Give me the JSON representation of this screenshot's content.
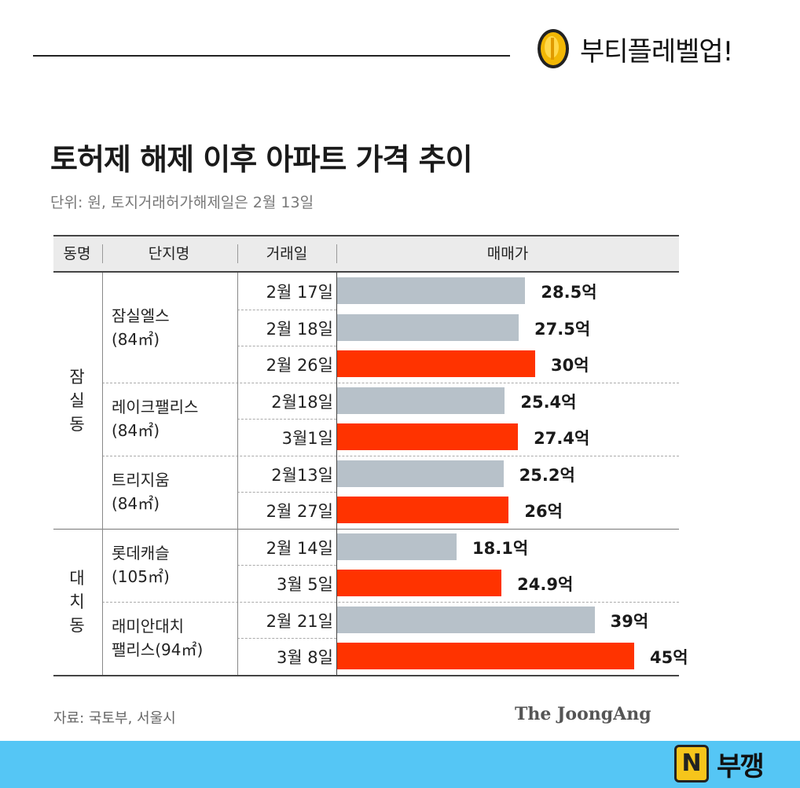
{
  "brand": {
    "name": "부티플레벨업!",
    "icon": "gold-coin-icon"
  },
  "chart_data": {
    "type": "table",
    "title": "토허제 해제 이후 아파트 가격 추이",
    "subtitle": "단위: 원, 토지거래허가해제일은 2월 13일",
    "columns": [
      "동명",
      "단지명",
      "거래일",
      "매매가"
    ],
    "dongs": [
      {
        "name": "잠실동",
        "label_chars": [
          "잠",
          "실",
          "동"
        ]
      },
      {
        "name": "대치동",
        "label_chars": [
          "대",
          "치",
          "동"
        ]
      }
    ],
    "complexes": [
      {
        "dong": "잠실동",
        "lines": [
          "잠실엘스",
          "(84㎡)"
        ]
      },
      {
        "dong": "잠실동",
        "lines": [
          "레이크팰리스",
          "(84㎡)"
        ]
      },
      {
        "dong": "잠실동",
        "lines": [
          "트리지움",
          "(84㎡)"
        ]
      },
      {
        "dong": "대치동",
        "lines": [
          "롯데캐슬",
          "(105㎡)"
        ]
      },
      {
        "dong": "대치동",
        "lines": [
          "래미안대치",
          "팰리스(94㎡)"
        ]
      }
    ],
    "rows": [
      {
        "complex": 0,
        "date": "2월 17일",
        "value": 28.5,
        "label": "28.5억",
        "after_lift": false
      },
      {
        "complex": 0,
        "date": "2월 18일",
        "value": 27.5,
        "label": "27.5억",
        "after_lift": false
      },
      {
        "complex": 0,
        "date": "2월 26일",
        "value": 30,
        "label": "30억",
        "after_lift": true
      },
      {
        "complex": 1,
        "date": "2월18일",
        "value": 25.4,
        "label": "25.4억",
        "after_lift": false
      },
      {
        "complex": 1,
        "date": "3월1일",
        "value": 27.4,
        "label": "27.4억",
        "after_lift": true
      },
      {
        "complex": 2,
        "date": "2월13일",
        "value": 25.2,
        "label": "25.2억",
        "after_lift": false
      },
      {
        "complex": 2,
        "date": "2월 27일",
        "value": 26,
        "label": "26억",
        "after_lift": true
      },
      {
        "complex": 3,
        "date": "2월 14일",
        "value": 18.1,
        "label": "18.1억",
        "after_lift": false
      },
      {
        "complex": 3,
        "date": "3월 5일",
        "value": 24.9,
        "label": "24.9억",
        "after_lift": true
      },
      {
        "complex": 4,
        "date": "2월 21일",
        "value": 39,
        "label": "39억",
        "after_lift": false
      },
      {
        "complex": 4,
        "date": "3월 8일",
        "value": 45,
        "label": "45억",
        "after_lift": true
      }
    ],
    "colors": {
      "before": "#b7c1c9",
      "after": "#ff3300"
    },
    "source": "자료: 국토부, 서울시",
    "publisher": "The JoongAng"
  },
  "footer": {
    "logo_letter": "N",
    "logo_text": "부깽"
  }
}
